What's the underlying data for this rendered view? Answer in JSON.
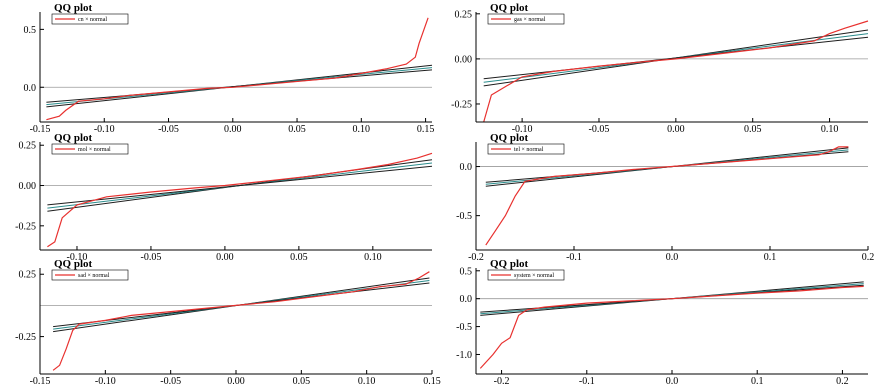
{
  "colors": {
    "qq_line": "#e8312f",
    "ref_line": "#1d1d1d",
    "ref_line_teal": "#2a8c8c",
    "zero_line": "#9a9a9a",
    "axis": "#000000"
  },
  "chart_data": [
    {
      "type": "line",
      "title": "QQ plot",
      "legend": "cn × normal",
      "legend_position": "top-left",
      "xlim": [
        -0.15,
        0.155
      ],
      "ylim": [
        -0.3,
        0.65
      ],
      "xticks": [
        -0.15,
        -0.1,
        -0.05,
        0.0,
        0.05,
        0.1,
        0.15
      ],
      "xtick_labels": [
        "-0.15",
        "-0.10",
        "-0.05",
        "0.00",
        "0.05",
        "0.10",
        "0.15"
      ],
      "yticks": [
        0.5,
        0.0
      ],
      "ytick_labels": [
        "0.5",
        "0.0"
      ],
      "qq": {
        "x": [
          -0.145,
          -0.135,
          -0.13,
          -0.12,
          -0.1,
          -0.08,
          -0.05,
          -0.02,
          0,
          0.03,
          0.06,
          0.08,
          0.1,
          0.12,
          0.135,
          0.142,
          0.145,
          0.152
        ],
        "y": [
          -0.28,
          -0.25,
          -0.2,
          -0.12,
          -0.1,
          -0.07,
          -0.04,
          -0.01,
          0,
          0.03,
          0.06,
          0.08,
          0.12,
          0.16,
          0.2,
          0.26,
          0.38,
          0.6
        ]
      },
      "ref_lines": [
        {
          "x": [
            -0.145,
            0.155
          ],
          "y": [
            -0.17,
            0.19
          ]
        },
        {
          "x": [
            -0.145,
            0.155
          ],
          "y": [
            -0.15,
            0.17
          ]
        },
        {
          "x": [
            -0.145,
            0.155
          ],
          "y": [
            -0.13,
            0.15
          ]
        }
      ]
    },
    {
      "type": "line",
      "title": "QQ plot",
      "legend": "gas × normal",
      "legend_position": "top-left",
      "xlim": [
        -0.13,
        0.125
      ],
      "ylim": [
        -0.35,
        0.26
      ],
      "xticks": [
        -0.1,
        -0.05,
        0.0,
        0.05,
        0.1
      ],
      "xtick_labels": [
        "-0.10",
        "-0.05",
        "0.00",
        "0.05",
        "0.10"
      ],
      "yticks": [
        0.25,
        0.0,
        -0.25
      ],
      "ytick_labels": [
        "0.25",
        "0.00",
        "-0.25"
      ],
      "qq": {
        "x": [
          -0.125,
          -0.12,
          -0.11,
          -0.1,
          -0.08,
          -0.05,
          -0.02,
          0,
          0.03,
          0.06,
          0.09,
          0.1,
          0.11,
          0.125
        ],
        "y": [
          -0.35,
          -0.2,
          -0.15,
          -0.1,
          -0.07,
          -0.04,
          -0.015,
          0,
          0.03,
          0.06,
          0.1,
          0.14,
          0.17,
          0.21
        ]
      },
      "ref_lines": [
        {
          "x": [
            -0.125,
            0.125
          ],
          "y": [
            -0.15,
            0.16
          ]
        },
        {
          "x": [
            -0.125,
            0.125
          ],
          "y": [
            -0.13,
            0.14
          ]
        },
        {
          "x": [
            -0.125,
            0.125
          ],
          "y": [
            -0.11,
            0.12
          ]
        }
      ]
    },
    {
      "type": "line",
      "title": "QQ plot",
      "legend": "mol × normal",
      "legend_position": "top-left",
      "xlim": [
        -0.125,
        0.14
      ],
      "ylim": [
        -0.4,
        0.27
      ],
      "xticks": [
        -0.1,
        -0.05,
        0.0,
        0.05,
        0.1
      ],
      "xtick_labels": [
        "-0.10",
        "-0.05",
        "0.00",
        "0.05",
        "0.10"
      ],
      "yticks": [
        0.25,
        0.0,
        -0.25
      ],
      "ytick_labels": [
        "0.25",
        "0.00",
        "-0.25"
      ],
      "qq": {
        "x": [
          -0.12,
          -0.115,
          -0.11,
          -0.1,
          -0.08,
          -0.05,
          -0.02,
          0,
          0.03,
          0.06,
          0.09,
          0.11,
          0.13,
          0.14
        ],
        "y": [
          -0.38,
          -0.35,
          -0.2,
          -0.12,
          -0.07,
          -0.04,
          -0.015,
          0,
          0.03,
          0.06,
          0.1,
          0.13,
          0.17,
          0.2
        ]
      },
      "ref_lines": [
        {
          "x": [
            -0.12,
            0.14
          ],
          "y": [
            -0.16,
            0.16
          ]
        },
        {
          "x": [
            -0.12,
            0.14
          ],
          "y": [
            -0.14,
            0.14
          ]
        },
        {
          "x": [
            -0.12,
            0.14
          ],
          "y": [
            -0.12,
            0.12
          ]
        }
      ]
    },
    {
      "type": "line",
      "title": "QQ plot",
      "legend": "tel × normal",
      "legend_position": "top-left",
      "xlim": [
        -0.2,
        0.2
      ],
      "ylim": [
        -0.85,
        0.25
      ],
      "xticks": [
        -0.2,
        -0.1,
        0.0,
        0.1,
        0.2
      ],
      "xtick_labels": [
        "-0.2",
        "-0.1",
        "0.0",
        "0.1",
        "0.2"
      ],
      "yticks": [
        0.0,
        -0.5
      ],
      "ytick_labels": [
        "0.0",
        "-0.5"
      ],
      "qq": {
        "x": [
          -0.19,
          -0.18,
          -0.17,
          -0.16,
          -0.15,
          -0.12,
          -0.08,
          -0.04,
          0,
          0.05,
          0.1,
          0.15,
          0.16,
          0.17,
          0.18
        ],
        "y": [
          -0.8,
          -0.65,
          -0.5,
          -0.3,
          -0.15,
          -0.1,
          -0.07,
          -0.03,
          0,
          0.04,
          0.08,
          0.12,
          0.15,
          0.2,
          0.2
        ]
      },
      "ref_lines": [
        {
          "x": [
            -0.19,
            0.18
          ],
          "y": [
            -0.2,
            0.19
          ]
        },
        {
          "x": [
            -0.19,
            0.18
          ],
          "y": [
            -0.18,
            0.17
          ]
        },
        {
          "x": [
            -0.19,
            0.18
          ],
          "y": [
            -0.16,
            0.15
          ]
        }
      ]
    },
    {
      "type": "line",
      "title": "QQ plot",
      "legend": "sad × normal",
      "legend_position": "top-left",
      "xlim": [
        -0.15,
        0.15
      ],
      "ylim": [
        -0.55,
        0.3
      ],
      "xticks": [
        -0.15,
        -0.1,
        -0.05,
        0.0,
        0.05,
        0.1,
        0.15
      ],
      "xtick_labels": [
        "-0.15",
        "-0.10",
        "-0.05",
        "0.00",
        "0.05",
        "0.10",
        "0.15"
      ],
      "yticks": [
        0.25,
        -0.25
      ],
      "ytick_labels": [
        "0.25",
        "-0.25"
      ],
      "qq": {
        "x": [
          -0.14,
          -0.135,
          -0.13,
          -0.125,
          -0.12,
          -0.1,
          -0.08,
          -0.05,
          -0.02,
          0,
          0.03,
          0.06,
          0.09,
          0.11,
          0.13,
          0.14,
          0.148
        ],
        "y": [
          -0.52,
          -0.48,
          -0.35,
          -0.2,
          -0.15,
          -0.12,
          -0.08,
          -0.05,
          -0.02,
          0,
          0.03,
          0.07,
          0.11,
          0.15,
          0.17,
          0.22,
          0.27
        ]
      },
      "ref_lines": [
        {
          "x": [
            -0.14,
            0.148
          ],
          "y": [
            -0.21,
            0.22
          ]
        },
        {
          "x": [
            -0.14,
            0.148
          ],
          "y": [
            -0.19,
            0.2
          ]
        },
        {
          "x": [
            -0.14,
            0.148
          ],
          "y": [
            -0.17,
            0.18
          ]
        }
      ]
    },
    {
      "type": "line",
      "title": "QQ plot",
      "legend": "system × normal",
      "legend_position": "top-left",
      "xlim": [
        -0.23,
        0.23
      ],
      "ylim": [
        -1.35,
        0.55
      ],
      "xticks": [
        -0.2,
        -0.1,
        0.0,
        0.1,
        0.2
      ],
      "xtick_labels": [
        "-0.2",
        "-0.1",
        "0.0",
        "0.1",
        "0.2"
      ],
      "yticks": [
        0.5,
        0.0,
        -0.5,
        -1.0
      ],
      "ytick_labels": [
        "0.5",
        "0.0",
        "-0.5",
        "-1.0"
      ],
      "qq": {
        "x": [
          -0.225,
          -0.21,
          -0.2,
          -0.19,
          -0.18,
          -0.17,
          -0.15,
          -0.1,
          -0.05,
          0,
          0.05,
          0.1,
          0.15,
          0.2,
          0.225
        ],
        "y": [
          -1.25,
          -1.0,
          -0.8,
          -0.7,
          -0.3,
          -0.2,
          -0.15,
          -0.08,
          -0.04,
          0,
          0.05,
          0.1,
          0.14,
          0.2,
          0.22
        ]
      },
      "ref_lines": [
        {
          "x": [
            -0.225,
            0.225
          ],
          "y": [
            -0.3,
            0.3
          ]
        },
        {
          "x": [
            -0.225,
            0.225
          ],
          "y": [
            -0.27,
            0.27
          ]
        },
        {
          "x": [
            -0.225,
            0.225
          ],
          "y": [
            -0.24,
            0.24
          ]
        }
      ]
    }
  ]
}
